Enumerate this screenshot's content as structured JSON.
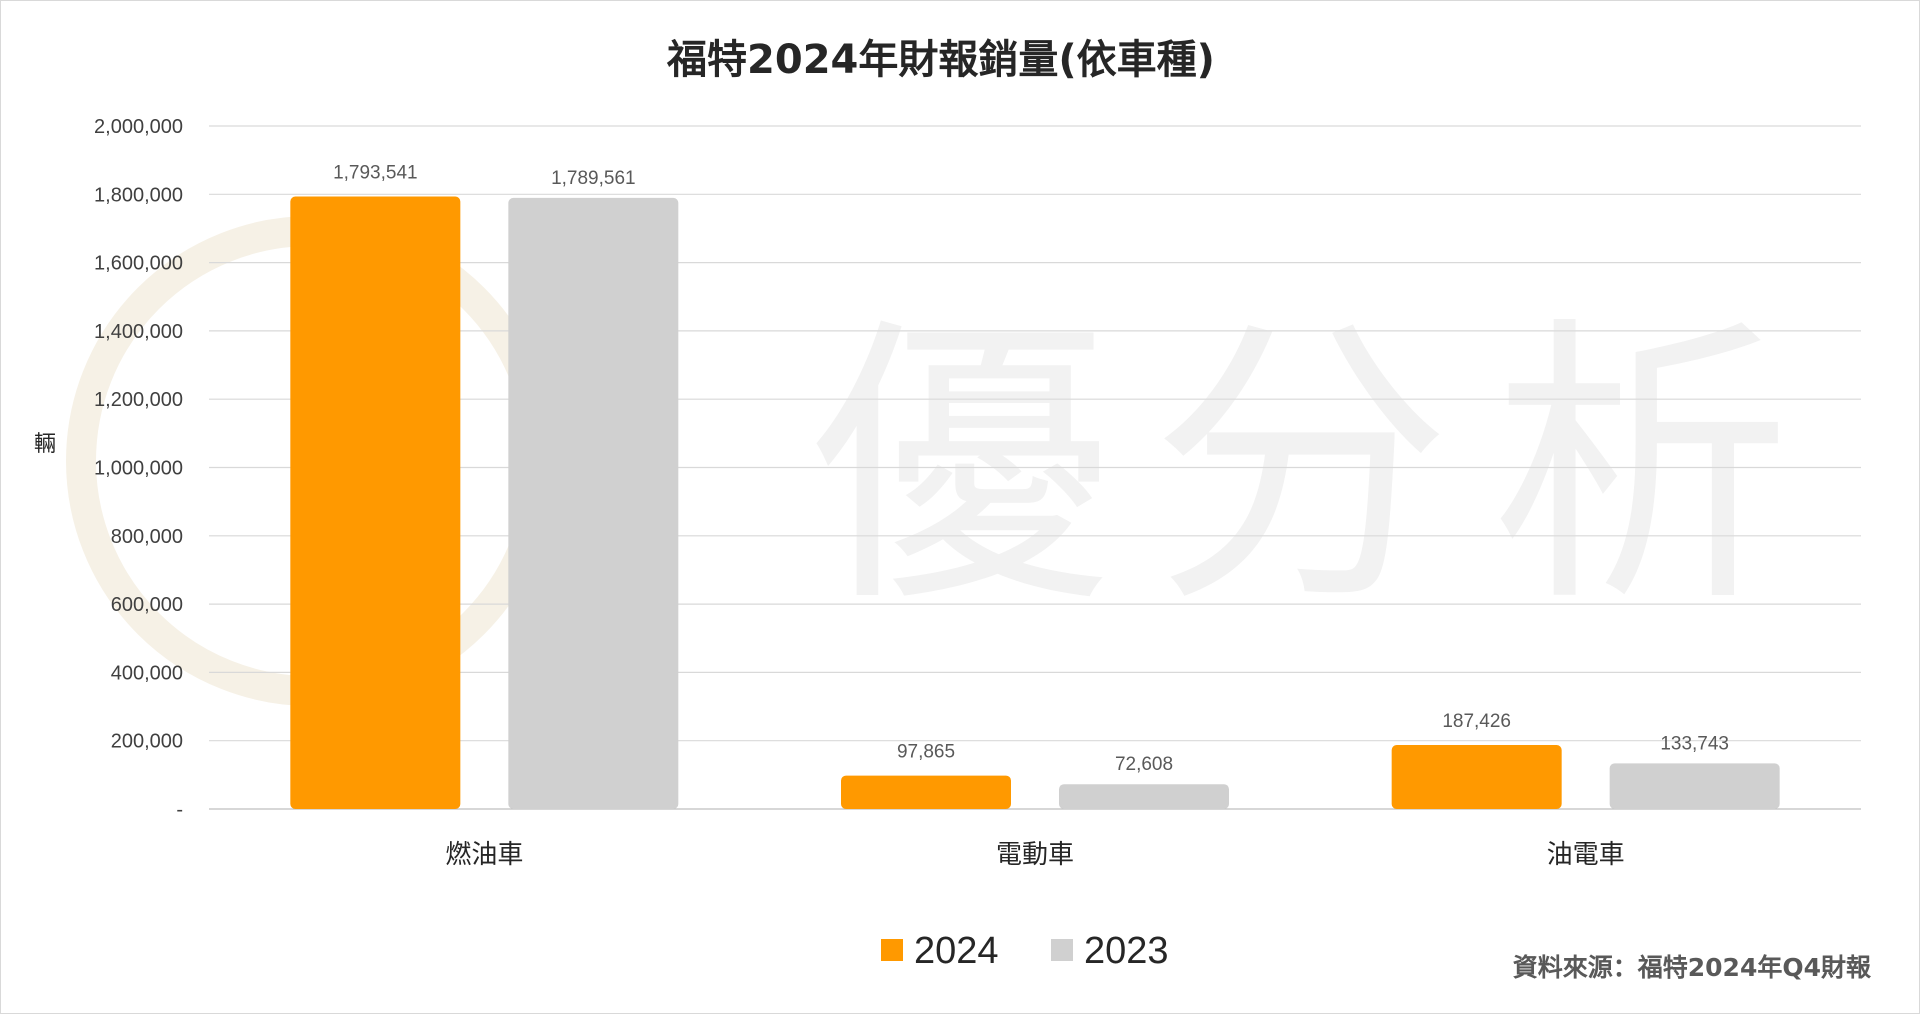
{
  "source_note": "資料來源：福特2024年Q4財報",
  "watermark": {
    "text": "優分析"
  },
  "chart_data": {
    "type": "bar",
    "title": "福特2024年財報銷量(依車種)",
    "ylabel": "輛",
    "xlabel": "",
    "categories": [
      "燃油車",
      "電動車",
      "油電車"
    ],
    "series": [
      {
        "name": "2024",
        "color": "#FF9900",
        "values": [
          1793541,
          97865,
          187426
        ],
        "labels": [
          "1,793,541",
          "97,865",
          "187,426"
        ]
      },
      {
        "name": "2023",
        "color": "#D0D0D0",
        "values": [
          1789561,
          72608,
          133743
        ],
        "labels": [
          "1,789,561",
          "72,608",
          "133,743"
        ]
      }
    ],
    "ylim": [
      0,
      2000000
    ],
    "yticks": [
      0,
      200000,
      400000,
      600000,
      800000,
      1000000,
      1200000,
      1400000,
      1600000,
      1800000,
      2000000
    ],
    "ytick_labels": [
      "-",
      "200,000",
      "400,000",
      "600,000",
      "800,000",
      "1,000,000",
      "1,200,000",
      "1,400,000",
      "1,600,000",
      "1,800,000",
      "2,000,000"
    ],
    "grid": true,
    "legend_position": "bottom-center"
  }
}
